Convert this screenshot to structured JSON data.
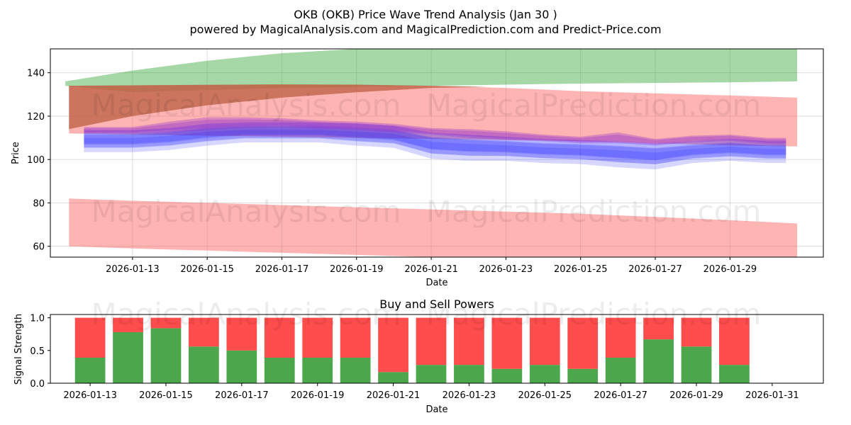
{
  "title_line1": "OKB (OKB) Price Wave Trend Analysis (Jan 30 )",
  "title_line2": "powered by MagicalAnalysis.com and MagicalPrediction.com and Predict-Price.com",
  "watermarks": [
    "MagicalAnalysis.com",
    "MagicalPrediction.com"
  ],
  "colors": {
    "green_band": "#2ca02c",
    "red_band": "#ff4c4c",
    "olive_band": "#8b6d3a",
    "blue_wave": "#1a1aff",
    "purple_wave": "#9933cc",
    "buy_bar": "#4ca64c",
    "sell_bar": "#ff4c4c"
  },
  "chart_data": [
    {
      "type": "area",
      "name": "price-wave-chart",
      "title": "",
      "xlabel": "Date",
      "ylabel": "Price",
      "x_range": [
        "2026-01-10.8",
        "2026-01-31.5"
      ],
      "ylim": [
        55,
        151
      ],
      "yticks": [
        60,
        80,
        100,
        120,
        140
      ],
      "xtick_labels": [
        "2026-01-13",
        "2026-01-15",
        "2026-01-17",
        "2026-01-19",
        "2026-01-21",
        "2026-01-23",
        "2026-01-25",
        "2026-01-27",
        "2026-01-29"
      ],
      "xtick_days": [
        13,
        15,
        17,
        19,
        21,
        23,
        25,
        27,
        29
      ],
      "grid": true,
      "bands": [
        {
          "name": "green-upper-band",
          "color": "green",
          "x_days": [
            11.2,
            13,
            15,
            17,
            19,
            21,
            23,
            25,
            27,
            29,
            30.8
          ],
          "upper": [
            136,
            141,
            145.5,
            149,
            151,
            151,
            151,
            151,
            151,
            151,
            151
          ],
          "lower": [
            134,
            131,
            132,
            133,
            133.5,
            134,
            134.5,
            135,
            135.3,
            135.6,
            136
          ]
        },
        {
          "name": "olive-band",
          "color": "olive",
          "x_days": [
            11.3,
            13,
            15,
            17,
            19,
            21,
            22.5
          ],
          "upper": [
            134,
            134.2,
            134.4,
            134.6,
            134.5,
            134,
            133.5
          ],
          "lower": [
            114,
            120,
            125,
            128.5,
            131,
            133,
            133.5
          ]
        },
        {
          "name": "red-upper-band",
          "color": "red",
          "x_days": [
            11.3,
            13,
            15,
            17,
            19,
            21,
            23,
            25,
            27,
            29,
            30.8
          ],
          "upper": [
            134,
            134.2,
            134.4,
            134.6,
            134.5,
            134,
            133,
            131.5,
            130.5,
            129.5,
            128.5
          ],
          "lower": [
            112,
            111.5,
            111,
            110.5,
            110,
            109.5,
            109,
            108.5,
            107.5,
            106.5,
            106
          ]
        },
        {
          "name": "red-lower-band",
          "color": "red",
          "x_days": [
            11.3,
            13,
            15,
            17,
            19,
            21,
            23,
            25,
            27,
            29,
            30.8
          ],
          "upper": [
            82,
            81,
            80,
            79,
            78,
            77,
            76,
            75,
            73.5,
            72,
            70.5
          ],
          "lower": [
            60,
            59,
            58,
            57,
            56,
            55,
            55,
            55,
            55,
            55,
            55
          ]
        }
      ],
      "waves": {
        "x_days": [
          11.7,
          13,
          14,
          15,
          16,
          17,
          18,
          19,
          20,
          21,
          22,
          23,
          24,
          25,
          26,
          27,
          28,
          29,
          30,
          30.5
        ],
        "blue_center": [
          109,
          109,
          110,
          112,
          113,
          113,
          113,
          112,
          111,
          107,
          106,
          105.5,
          104.5,
          104,
          103,
          102,
          104,
          105,
          104,
          104
        ],
        "blue_spread": [
          5,
          5,
          5,
          5,
          4.5,
          4.5,
          4.5,
          5,
          5,
          6,
          6,
          5.5,
          5.5,
          5.5,
          6,
          6,
          5,
          5,
          5,
          5
        ],
        "purple_center": [
          113.5,
          113.5,
          115,
          116.5,
          117,
          117,
          116,
          115.5,
          114.5,
          113,
          112,
          111,
          110,
          109,
          110,
          108,
          109.5,
          110,
          108.5,
          108.5
        ],
        "purple_spread": [
          1.5,
          1.5,
          2.5,
          3,
          2.5,
          2,
          2,
          2,
          2,
          1.5,
          2,
          2,
          1.5,
          1.5,
          2.5,
          1.5,
          1.5,
          1.5,
          1.5,
          1.5
        ]
      }
    },
    {
      "type": "bar",
      "name": "buy-sell-power-chart",
      "title": "Buy and Sell Powers",
      "xlabel": "Date",
      "ylabel": "Signal Strength",
      "ylim": [
        0,
        1.05
      ],
      "yticks": [
        0.0,
        0.5,
        1.0
      ],
      "ytick_labels": [
        "0.0",
        "0.5",
        "1.0"
      ],
      "x_range_days": [
        11.95,
        32.35
      ],
      "xtick_labels": [
        "2026-01-13",
        "2026-01-15",
        "2026-01-17",
        "2026-01-19",
        "2026-01-21",
        "2026-01-23",
        "2026-01-25",
        "2026-01-27",
        "2026-01-29",
        "2026-01-31"
      ],
      "xtick_days": [
        13,
        15,
        17,
        19,
        21,
        23,
        25,
        27,
        29,
        31
      ],
      "categories": [
        "2026-01-13",
        "2026-01-14",
        "2026-01-15",
        "2026-01-16",
        "2026-01-17",
        "2026-01-18",
        "2026-01-19",
        "2026-01-20",
        "2026-01-21",
        "2026-01-22",
        "2026-01-23",
        "2026-01-24",
        "2026-01-25",
        "2026-01-26",
        "2026-01-27",
        "2026-01-28",
        "2026-01-29",
        "2026-01-30"
      ],
      "bar_days": [
        13,
        14,
        15,
        16,
        17,
        18,
        19,
        20,
        21,
        22,
        23,
        24,
        25,
        26,
        27,
        28,
        29,
        30
      ],
      "series": [
        {
          "name": "Buy",
          "values": [
            0.39,
            0.78,
            0.84,
            0.56,
            0.5,
            0.39,
            0.39,
            0.39,
            0.17,
            0.28,
            0.28,
            0.22,
            0.28,
            0.22,
            0.39,
            0.67,
            0.56,
            0.28
          ]
        },
        {
          "name": "Sell",
          "values": [
            0.61,
            0.22,
            0.16,
            0.44,
            0.5,
            0.61,
            0.61,
            0.61,
            0.83,
            0.72,
            0.72,
            0.78,
            0.72,
            0.78,
            0.61,
            0.33,
            0.44,
            0.72
          ]
        }
      ]
    }
  ]
}
